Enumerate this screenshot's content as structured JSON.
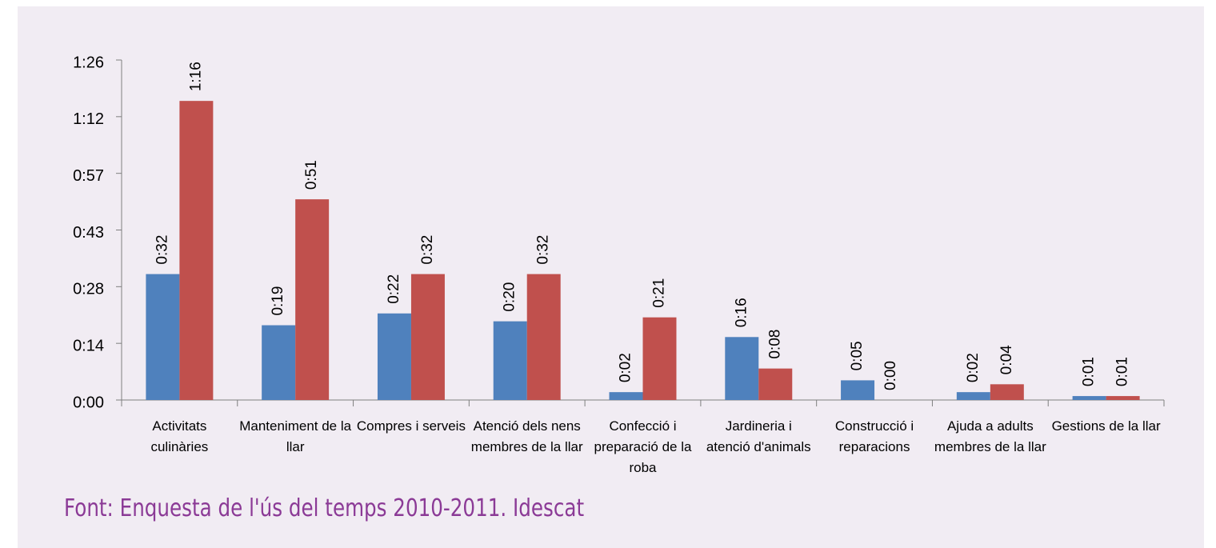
{
  "chart_data": {
    "type": "bar",
    "source": "Font: Enquesta de l'ús del temps 2010-2011. Idescat",
    "categories": [
      "Activitats culinàries",
      "Manteniment de la llar",
      "Compres i serveis",
      "Atenció dels nens membres de la llar",
      "Confecció i preparació de la roba",
      "Jardineria i atenció d'animals",
      "Construcció i reparacions",
      "Ajuda a adults membres de la llar",
      "Gestions de la llar"
    ],
    "series": [
      {
        "color": "#4f81bd",
        "values": [
          32,
          19,
          22,
          20,
          2,
          16,
          5,
          2,
          1
        ],
        "value_labels": [
          "0:32",
          "0:19",
          "0:22",
          "0:20",
          "0:02",
          "0:16",
          "0:05",
          "0:02",
          "0:01"
        ]
      },
      {
        "color": "#c0504d",
        "values": [
          76,
          51,
          32,
          32,
          21,
          8,
          0,
          4,
          1
        ],
        "value_labels": [
          "1:16",
          "0:51",
          "0:32",
          "0:32",
          "0:21",
          "0:08",
          "0:00",
          "0:04",
          "0:01"
        ]
      }
    ],
    "ylim": [
      0,
      86.4
    ],
    "yticks": [
      {
        "value": 0,
        "label": "0:00"
      },
      {
        "value": 14.4,
        "label": "0:14"
      },
      {
        "value": 28.8,
        "label": "0:28"
      },
      {
        "value": 43.2,
        "label": "0:43"
      },
      {
        "value": 57.6,
        "label": "0:57"
      },
      {
        "value": 72,
        "label": "1:12"
      },
      {
        "value": 86.4,
        "label": "1:26"
      }
    ],
    "grid": false
  }
}
